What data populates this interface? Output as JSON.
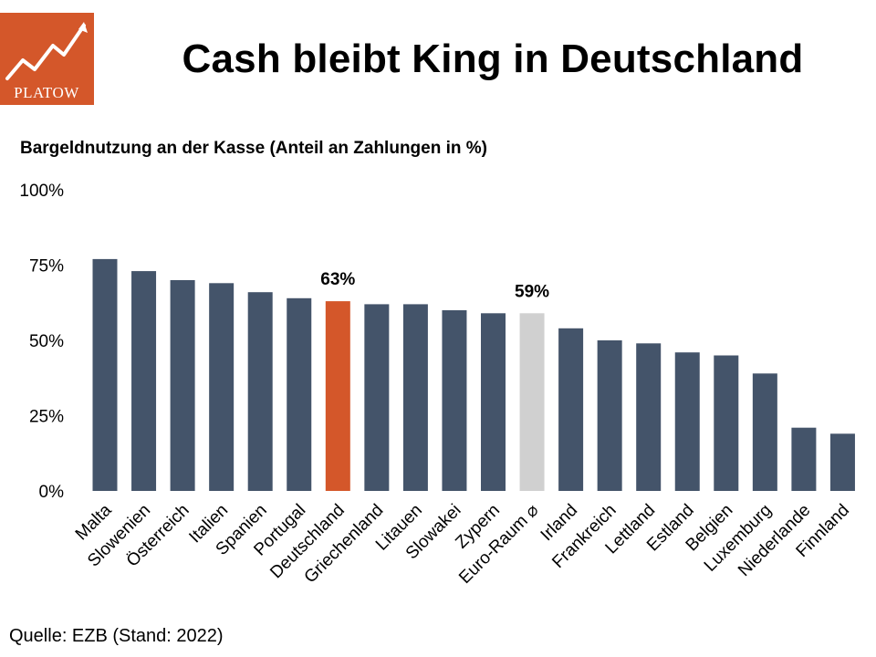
{
  "logo": {
    "text": "PLATOW",
    "color": "#d4572a"
  },
  "title": "Cash bleibt King in Deutschland",
  "subtitle": "Bargeldnutzung an der Kasse (Anteil an Zahlungen in %)",
  "source": "Quelle: EZB (Stand: 2022)",
  "chart_data": {
    "type": "bar",
    "categories": [
      "Malta",
      "Slowenien",
      "Österreich",
      "Italien",
      "Spanien",
      "Portugal",
      "Deutschland",
      "Griechenland",
      "Litauen",
      "Slowakei",
      "Zypern",
      "Euro-Raum ⌀",
      "Irland",
      "Frankreich",
      "Lettland",
      "Estland",
      "Belgien",
      "Luxemburg",
      "Niederlande",
      "Finnland"
    ],
    "values": [
      77,
      73,
      70,
      69,
      66,
      64,
      63,
      62,
      62,
      60,
      59,
      59,
      54,
      50,
      49,
      46,
      45,
      39,
      21,
      19
    ],
    "ylim": [
      0,
      100
    ],
    "yticks": [
      0,
      25,
      50,
      75,
      100
    ],
    "ytick_labels": [
      "0%",
      "25%",
      "50%",
      "75%",
      "100%"
    ],
    "data_labels": {
      "Deutschland": "63%",
      "Euro-Raum ⌀": "59%"
    },
    "colors": {
      "default": "#44546a",
      "Deutschland": "#d4572a",
      "Euro-Raum ⌀": "#d0d0d0"
    }
  }
}
